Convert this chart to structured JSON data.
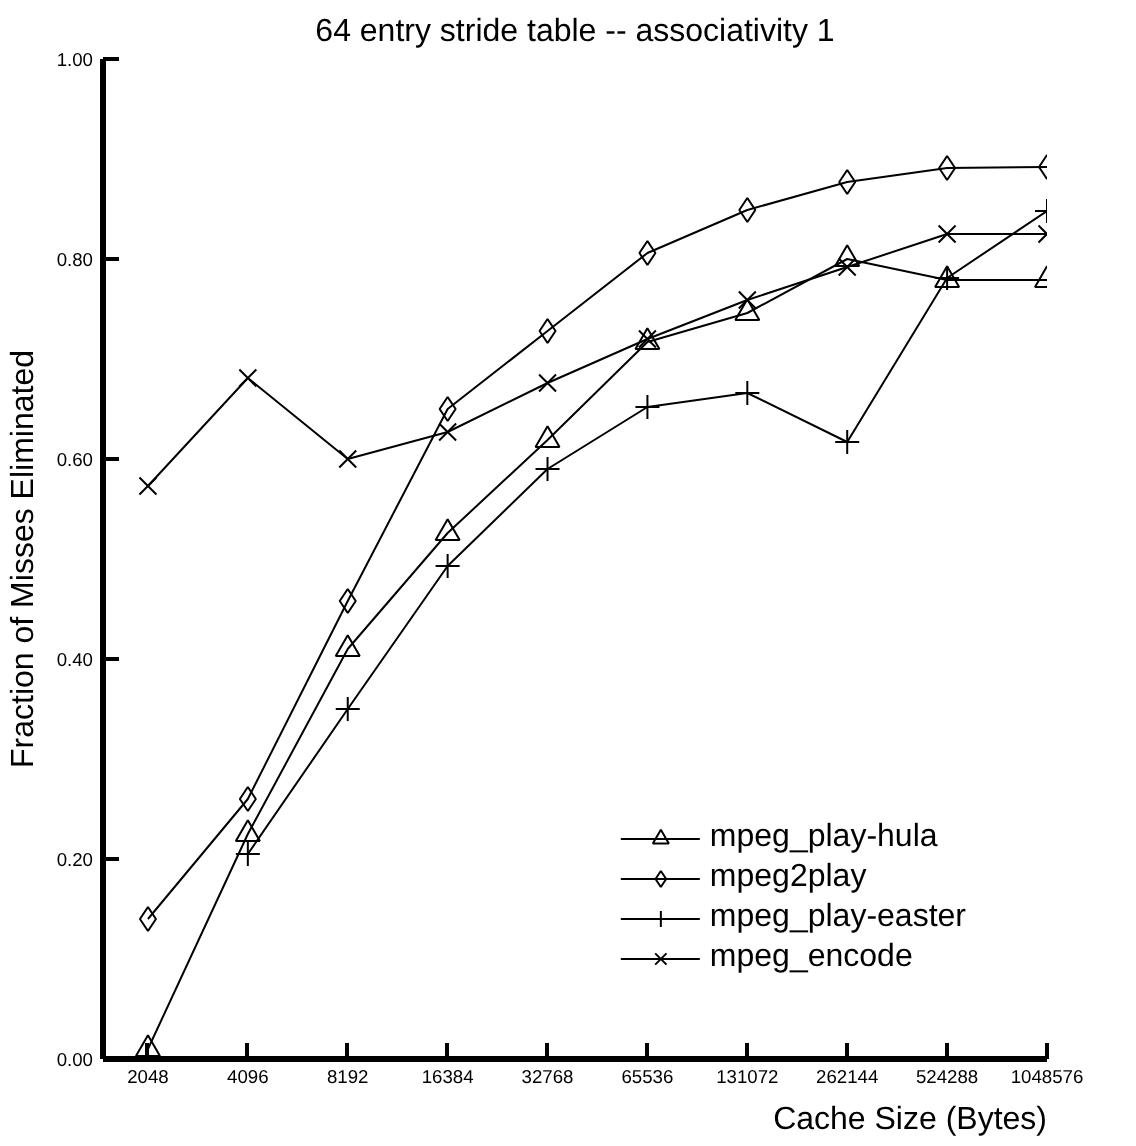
{
  "chart_data": {
    "type": "line",
    "title": "64 entry stride table -- associativity 1",
    "xlabel": "Cache Size (Bytes)",
    "ylabel": "Fraction of Misses Eliminated",
    "categories": [
      "2048",
      "4096",
      "8192",
      "16384",
      "32768",
      "65536",
      "131072",
      "262144",
      "524288",
      "1048576"
    ],
    "ylim": [
      0,
      1
    ],
    "yticks": [
      {
        "value": 0,
        "label": "0.00"
      },
      {
        "value": 0.2,
        "label": "0.20"
      },
      {
        "value": 0.4,
        "label": "0.40"
      },
      {
        "value": 0.6,
        "label": "0.60"
      },
      {
        "value": 0.8,
        "label": "0.80"
      },
      {
        "value": 1,
        "label": "1.00"
      }
    ],
    "grid": false,
    "legend": "bottom right",
    "line_style": "solid",
    "series": [
      {
        "name": "mpeg_play-hula",
        "color": "#000000",
        "marker": "triangle",
        "values": [
          0.01,
          0.225,
          0.41,
          0.526,
          0.619,
          0.717,
          0.746,
          0.8,
          0.779,
          0.779
        ]
      },
      {
        "name": "mpeg2play",
        "color": "#000000",
        "marker": "diamond",
        "values": [
          0.14,
          0.26,
          0.458,
          0.65,
          0.728,
          0.806,
          0.849,
          0.877,
          0.891,
          0.892
        ]
      },
      {
        "name": "mpeg_play-easter",
        "color": "#000000",
        "marker": "cross",
        "values": [
          null,
          0.205,
          0.35,
          0.493,
          0.59,
          0.652,
          0.666,
          0.617,
          0.781,
          0.848
        ]
      },
      {
        "name": "mpeg_encode",
        "color": "#000000",
        "marker": "x",
        "values": [
          0.573,
          0.681,
          0.6,
          0.627,
          0.676,
          0.72,
          0.759,
          0.792,
          0.825,
          0.825
        ]
      }
    ]
  }
}
